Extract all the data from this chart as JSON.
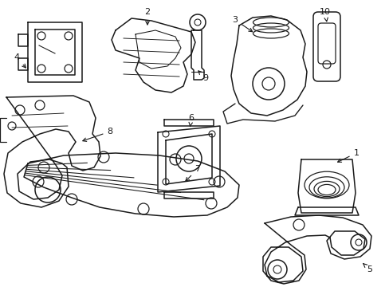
{
  "background_color": "#ffffff",
  "line_color": "#1a1a1a",
  "line_width": 1.1,
  "figsize": [
    4.89,
    3.6
  ],
  "dpi": 100
}
